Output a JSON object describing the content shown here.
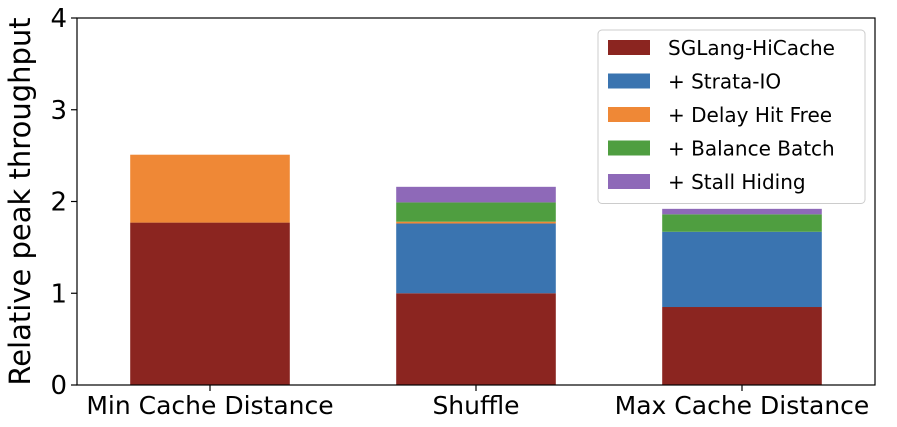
{
  "chart_data": {
    "type": "bar",
    "stacked": true,
    "categories": [
      "Min Cache Distance",
      "Shuffle",
      "Max Cache Distance"
    ],
    "ylabel": "Relative peak throughput",
    "xlabel": "",
    "ylim": [
      0,
      4
    ],
    "yticks": [
      0,
      1,
      2,
      3,
      4
    ],
    "legend_position": "top-right",
    "grid": false,
    "series": [
      {
        "name": "SGLang-HiCache",
        "color": "#8b2520",
        "values": [
          1.77,
          1.0,
          0.85
        ]
      },
      {
        "name": "+ Strata-IO",
        "color": "#3a74b0",
        "values": [
          0.0,
          0.76,
          0.82
        ]
      },
      {
        "name": "+ Delay Hit Free",
        "color": "#ef8836",
        "values": [
          0.74,
          0.02,
          0.0
        ]
      },
      {
        "name": "+ Balance Batch",
        "color": "#4f9e40",
        "values": [
          0.0,
          0.21,
          0.19
        ]
      },
      {
        "name": "+ Stall Hiding",
        "color": "#8e69b8",
        "values": [
          0.0,
          0.17,
          0.06
        ]
      }
    ]
  }
}
